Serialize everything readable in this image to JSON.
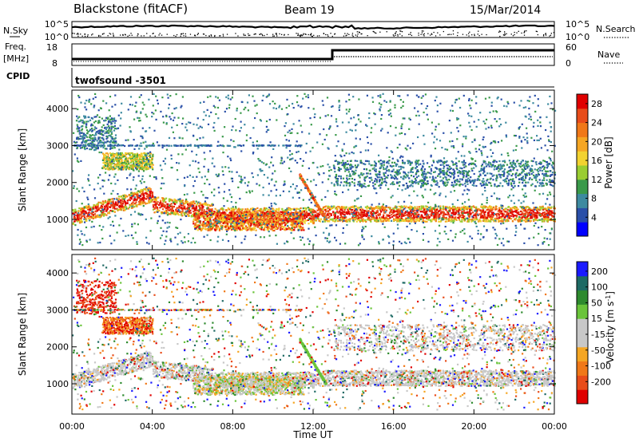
{
  "header": {
    "site": "Blackstone (fitACF)",
    "beam": "Beam 19",
    "date": "15/Mar/2014"
  },
  "noise_panel": {
    "left_label": "N.Sky",
    "right_label": "N.Search",
    "left_ticks": [
      "10^5",
      "10^0"
    ],
    "right_ticks": [
      "10^5",
      "10^0"
    ]
  },
  "freq_panel": {
    "left_label_line1": "Freq.",
    "left_label_line2": "[MHz]",
    "left_ticks": [
      "18",
      "8"
    ],
    "right_ticks": [
      "60",
      "0"
    ],
    "right_label": "Nave"
  },
  "cpid_panel": {
    "label": "CPID",
    "program": "twofsound -3501"
  },
  "colors": {
    "power": [
      "#0000ff",
      "#2a4fa8",
      "#3d8aa0",
      "#3a9a4a",
      "#9acd32",
      "#f2d230",
      "#f5a623",
      "#f07818",
      "#e84c1a",
      "#e00000"
    ],
    "velocity": [
      "#1a1aff",
      "#1e6a64",
      "#2e8a2e",
      "#6ac43a",
      "#c8c8c8",
      "#c8c8c8",
      "#f5a623",
      "#f07818",
      "#e84c1a",
      "#e00000"
    ]
  },
  "chart_data": [
    {
      "type": "heatmap",
      "name": "power",
      "xlabel": "Time UT",
      "ylabel": "Slant Range [km]",
      "xlim": [
        0,
        24
      ],
      "ylim": [
        180,
        4500
      ],
      "x_ticks": [
        "00:00",
        "04:00",
        "08:00",
        "12:00",
        "16:00",
        "20:00",
        "00:00"
      ],
      "y_ticks": [
        1000,
        2000,
        3000,
        4000
      ],
      "colorbar_label": "Power [dB]",
      "colorbar_ticks": [
        4,
        8,
        12,
        16,
        20,
        24,
        28
      ],
      "colorbar_range": [
        0,
        30
      ]
    },
    {
      "type": "heatmap",
      "name": "velocity",
      "xlabel": "Time UT",
      "ylabel": "Slant Range [km]",
      "xlim": [
        0,
        24
      ],
      "ylim": [
        180,
        4500
      ],
      "x_ticks": [
        "00:00",
        "04:00",
        "08:00",
        "12:00",
        "16:00",
        "20:00",
        "00:00"
      ],
      "y_ticks": [
        1000,
        2000,
        3000,
        4000
      ],
      "colorbar_label": "Velocity [m s^-1]",
      "colorbar_ticks": [
        200,
        100,
        50,
        15,
        -15,
        -50,
        -100,
        -200
      ]
    }
  ]
}
